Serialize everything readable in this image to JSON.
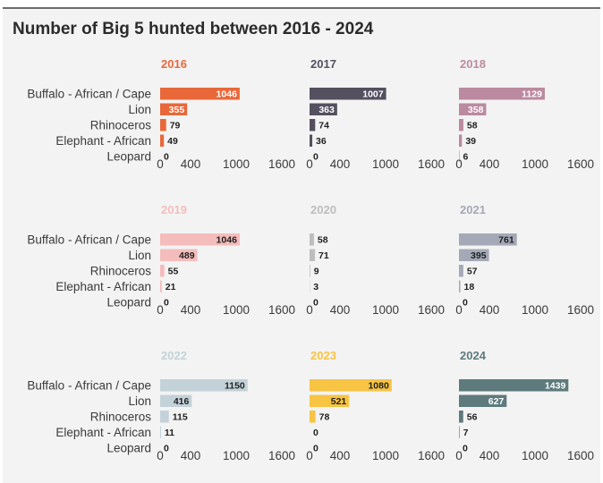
{
  "title": "Number of Big 5 hunted between 2016 - 2024",
  "chart_data": {
    "type": "bar",
    "orientation": "horizontal",
    "title": "Number of Big 5 hunted between 2016 - 2024",
    "categories": [
      "Buffalo - African / Cape",
      "Lion",
      "Rhinoceros",
      "Elephant - African",
      "Leopard"
    ],
    "xticks": [
      0,
      400,
      1000,
      1600
    ],
    "xlim": [
      0,
      1600
    ],
    "panels": [
      {
        "year": "2016",
        "color": "#e9683a",
        "label_inside_color": "#ffffff",
        "values": [
          1046,
          355,
          79,
          49,
          0
        ]
      },
      {
        "year": "2017",
        "color": "#55505f",
        "label_inside_color": "#ffffff",
        "values": [
          1007,
          363,
          74,
          36,
          0
        ]
      },
      {
        "year": "2018",
        "color": "#bb8aa0",
        "label_inside_color": "#ffffff",
        "values": [
          1129,
          358,
          58,
          39,
          6
        ]
      },
      {
        "year": "2019",
        "color": "#f5bcbc",
        "label_inside_color": "#1f1f1f",
        "values": [
          1046,
          489,
          55,
          21,
          0
        ]
      },
      {
        "year": "2020",
        "color": "#bdbdbd",
        "label_inside_color": "#1f1f1f",
        "values": [
          58,
          71,
          9,
          3,
          0
        ]
      },
      {
        "year": "2021",
        "color": "#a5a9b7",
        "label_inside_color": "#1f1f1f",
        "values": [
          761,
          395,
          57,
          18,
          0
        ]
      },
      {
        "year": "2022",
        "color": "#c3d2d8",
        "label_inside_color": "#1f1f1f",
        "values": [
          1150,
          416,
          115,
          11,
          0
        ]
      },
      {
        "year": "2023",
        "color": "#f7c443",
        "label_inside_color": "#1f1f1f",
        "values": [
          1080,
          521,
          78,
          0,
          0
        ]
      },
      {
        "year": "2024",
        "color": "#5e7a7c",
        "label_inside_color": "#ffffff",
        "values": [
          1439,
          627,
          56,
          7,
          0
        ]
      }
    ]
  }
}
